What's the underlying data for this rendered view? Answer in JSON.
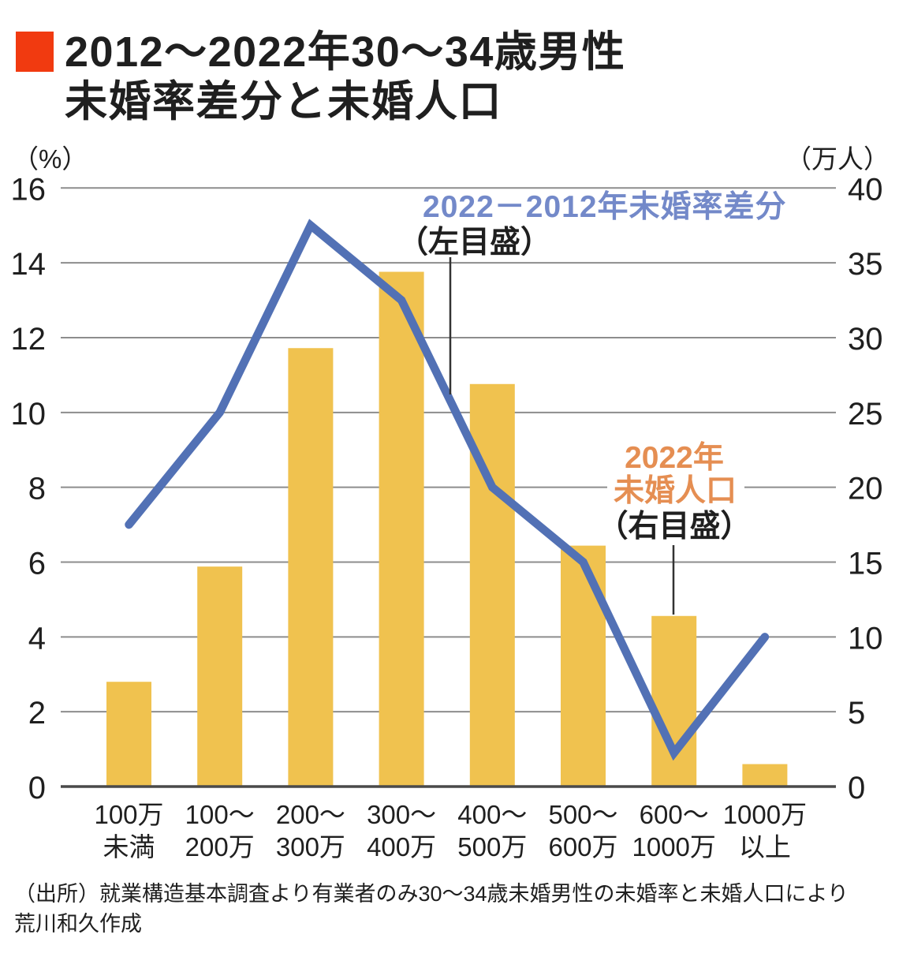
{
  "title": {
    "line1": "2012～2022年30～34歳男性",
    "line2": "未婚率差分と未婚人口"
  },
  "colors": {
    "accent_red": "#f13a10",
    "bar": "#f0c24f",
    "line": "#5271b5",
    "annotation_blue": "#7389c9",
    "annotation_orange": "#e58e52",
    "grid": "#8d8d8d",
    "axis": "#4a4a4a",
    "text": "#1f1f1f",
    "pointer": "#333333"
  },
  "left_axis": {
    "unit": "（%）",
    "ticks": [
      16,
      14,
      12,
      10,
      8,
      6,
      4,
      2,
      0
    ],
    "max": 16
  },
  "right_axis": {
    "unit": "（万人）",
    "ticks": [
      40,
      35,
      30,
      25,
      20,
      15,
      10,
      5,
      0
    ],
    "max": 40
  },
  "annotations": {
    "line_label": "2022－2012年未婚率差分",
    "line_sublabel": "（左目盛）",
    "bar_label_line1": "2022年",
    "bar_label_line2": "未婚人口",
    "bar_sublabel": "（右目盛）"
  },
  "source": {
    "line1": "（出所）就業構造基本調査より有業者のみ30～34歳未婚男性の未婚率と未婚人口により",
    "line2": "荒川和久作成"
  },
  "chart_data": {
    "type": "combo",
    "categories": [
      [
        "100万",
        "未満"
      ],
      [
        "100～",
        "200万"
      ],
      [
        "200～",
        "300万"
      ],
      [
        "300～",
        "400万"
      ],
      [
        "400～",
        "500万"
      ],
      [
        "500～",
        "600万"
      ],
      [
        "600～",
        "1000万"
      ],
      [
        "1000万",
        "以上"
      ]
    ],
    "series": [
      {
        "name": "2022年未婚人口",
        "type": "bar",
        "axis": "right",
        "unit": "万人",
        "values": [
          7.0,
          14.7,
          29.3,
          34.4,
          26.9,
          16.1,
          11.4,
          1.5
        ]
      },
      {
        "name": "2022－2012年未婚率差分",
        "type": "line",
        "axis": "left",
        "unit": "%",
        "values": [
          7.0,
          10.0,
          15.0,
          13.0,
          8.0,
          6.0,
          0.9,
          4.0
        ]
      }
    ],
    "left_ylim": [
      0,
      16
    ],
    "right_ylim": [
      0,
      40
    ],
    "grid": true,
    "legend_position": "annotations-inside"
  }
}
